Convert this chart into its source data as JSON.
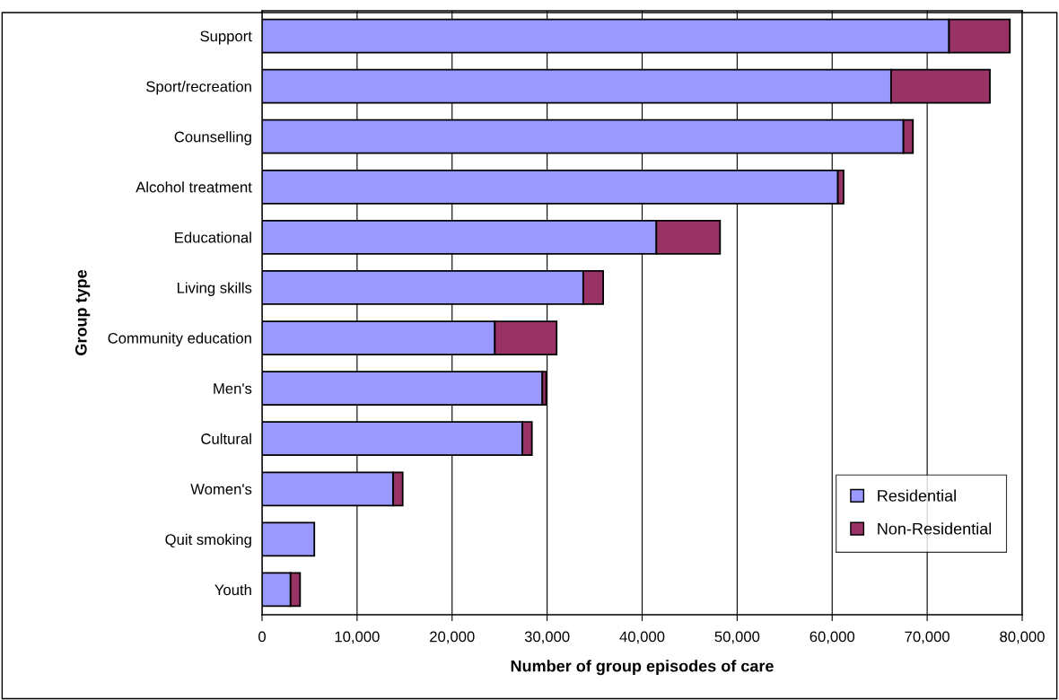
{
  "chart_data": {
    "type": "bar",
    "orientation": "horizontal",
    "stacked": true,
    "xlabel": "Number of group episodes of care",
    "ylabel": "Group type",
    "categories": [
      "Support",
      "Sport/recreation",
      "Counselling",
      "Alcohol treatment",
      "Educational",
      "Living skills",
      "Community education",
      "Men's",
      "Cultural",
      "Women's",
      "Quit smoking",
      "Youth"
    ],
    "series": [
      {
        "name": "Residential",
        "color": "#9999ff",
        "values": [
          72300,
          66200,
          67500,
          60600,
          41500,
          33800,
          24500,
          29500,
          27400,
          13800,
          5500,
          3000
        ]
      },
      {
        "name": "Non-Residential",
        "color": "#993366",
        "values": [
          6400,
          10400,
          1000,
          600,
          6700,
          2100,
          6500,
          400,
          1000,
          1000,
          null,
          1000
        ]
      }
    ],
    "xlim": [
      0,
      80000
    ],
    "xticks": [
      {
        "value": 0,
        "label": "0"
      },
      {
        "value": 10000,
        "label": "10,000"
      },
      {
        "value": 20000,
        "label": "20,000"
      },
      {
        "value": 30000,
        "label": "30,000"
      },
      {
        "value": 40000,
        "label": "40,000"
      },
      {
        "value": 50000,
        "label": "50,000"
      },
      {
        "value": 60000,
        "label": "60,000"
      },
      {
        "value": 70000,
        "label": "70,000"
      },
      {
        "value": 80000,
        "label": "80,000"
      }
    ],
    "grid": "x",
    "legend": "bottom right"
  }
}
